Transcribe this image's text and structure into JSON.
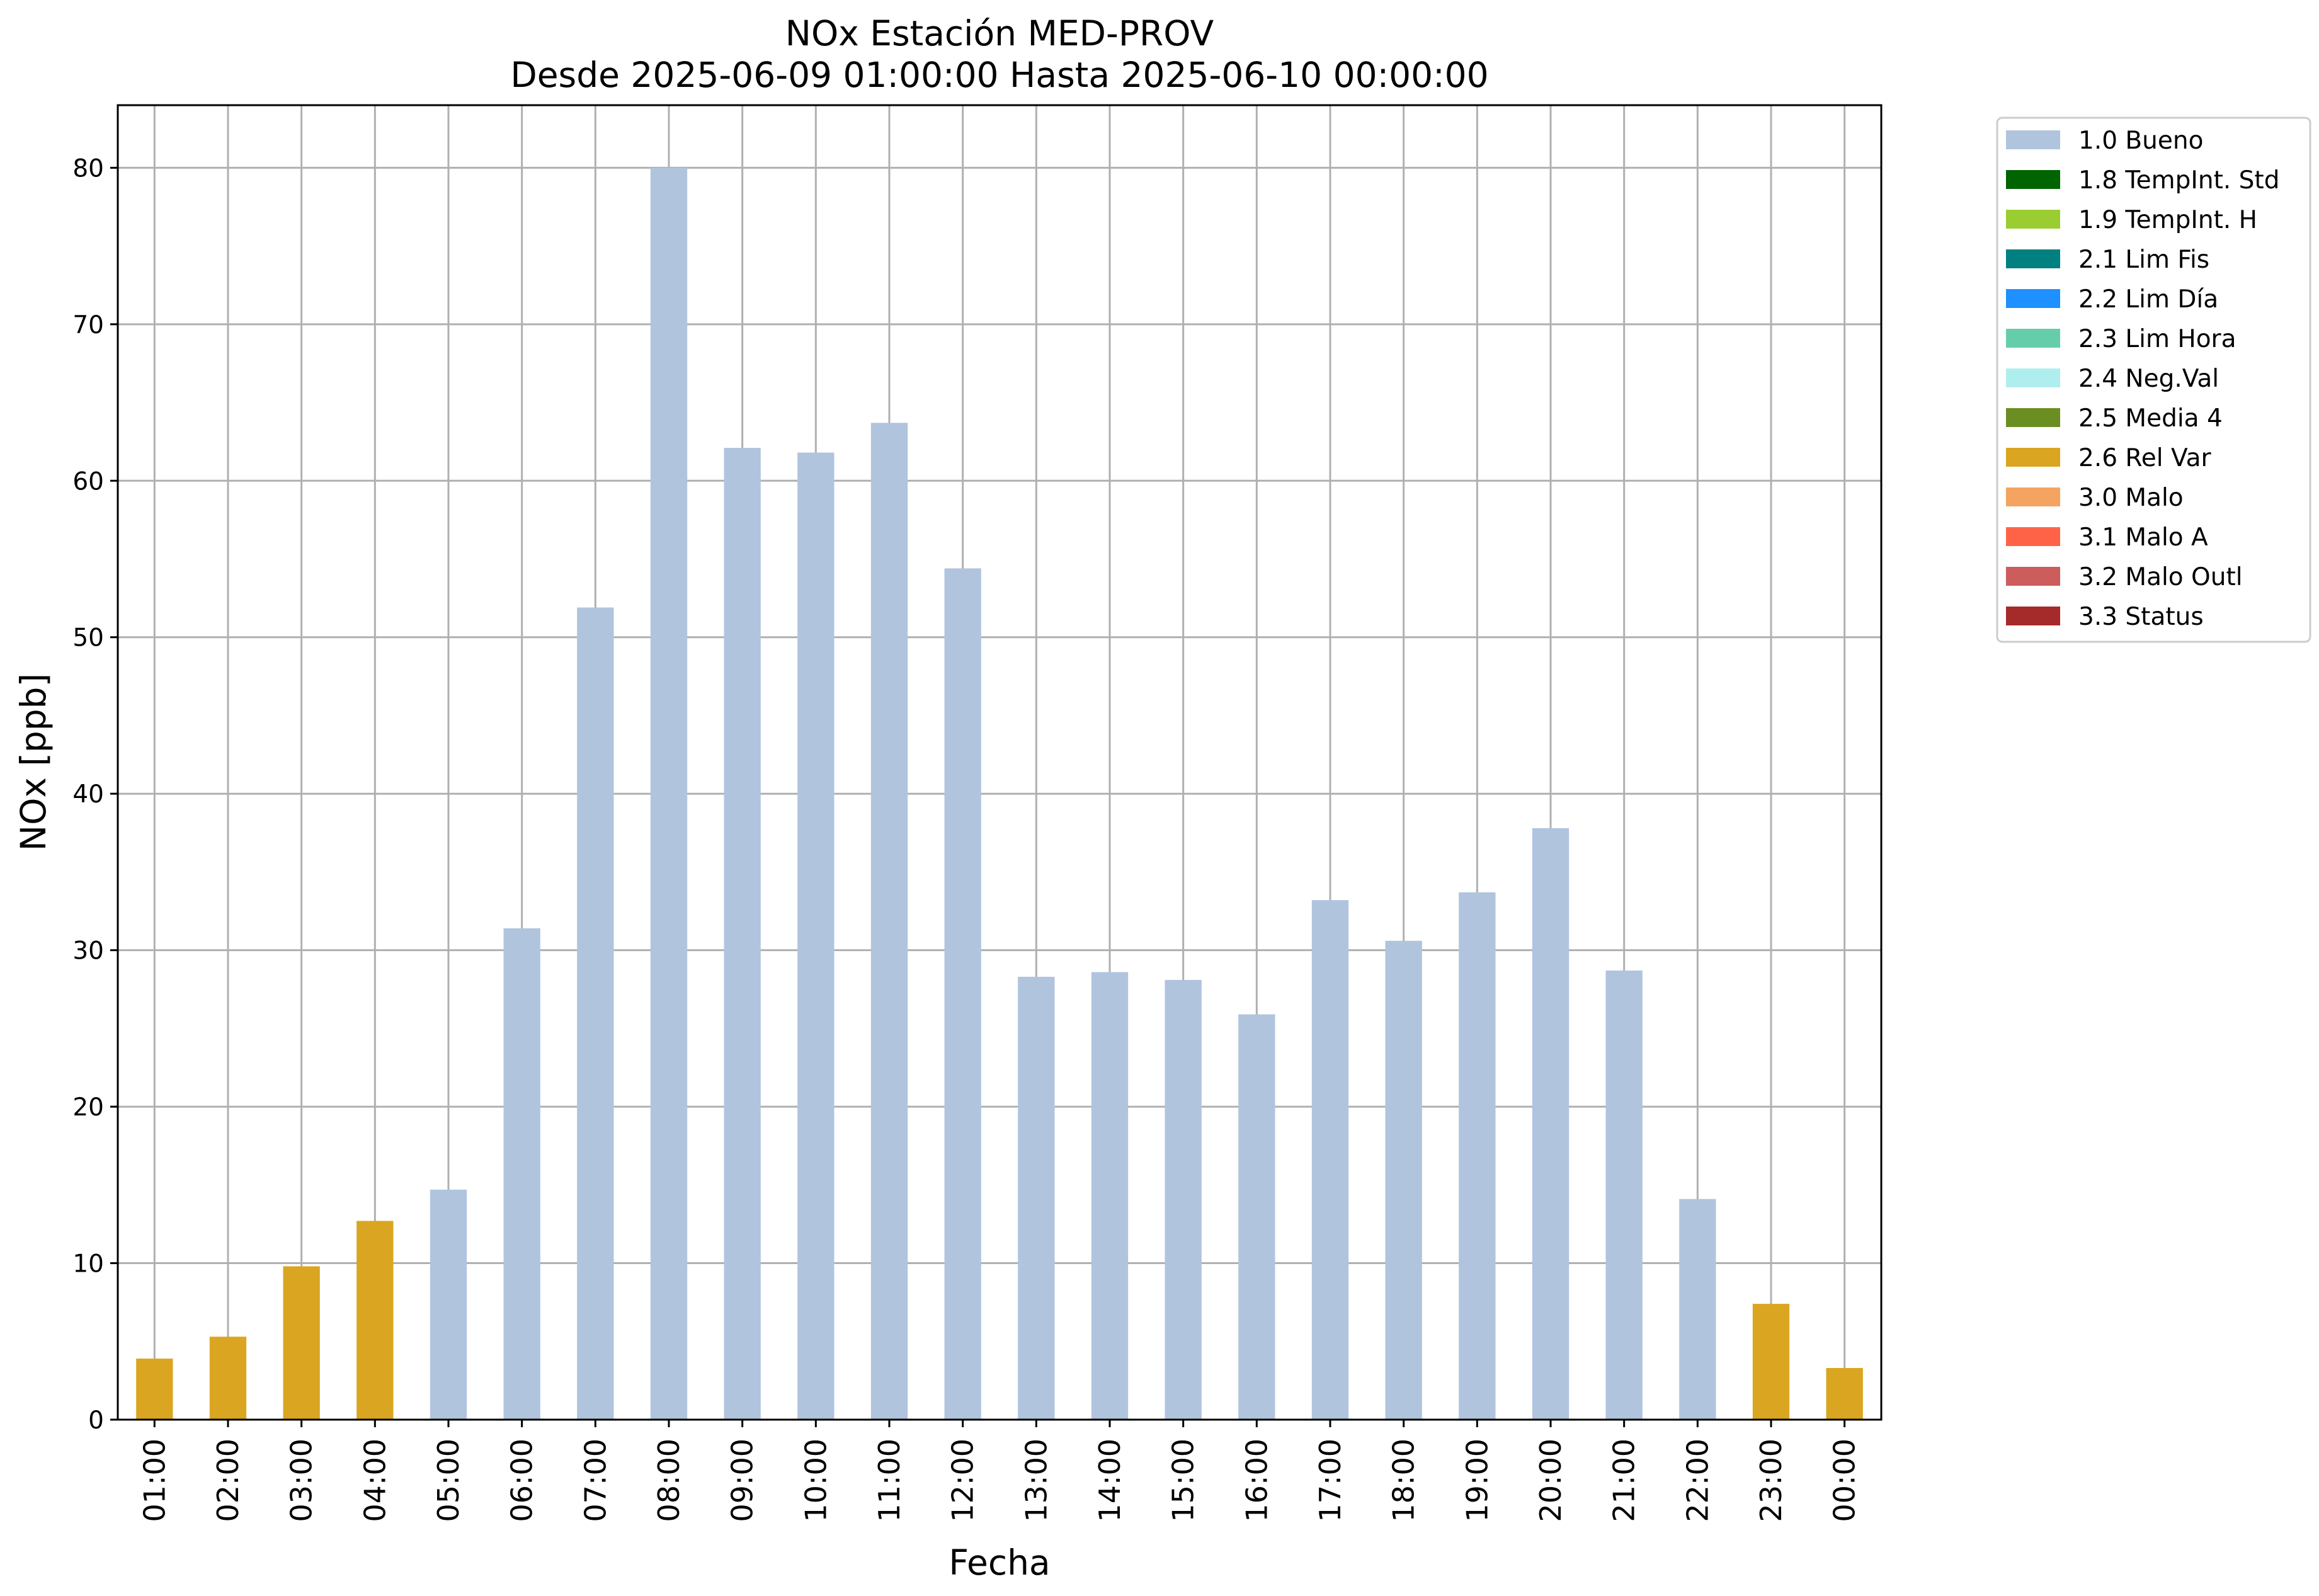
{
  "chart_data": {
    "type": "bar",
    "title": "NOx Estación MED-PROV",
    "subtitle": "Desde 2025-06-09 01:00:00 Hasta 2025-06-10 00:00:00",
    "xlabel": "Fecha",
    "ylabel": "NOx [ppb]",
    "ylim": [
      0,
      84
    ],
    "yticks": [
      0,
      10,
      20,
      30,
      40,
      50,
      60,
      70,
      80
    ],
    "grid": true,
    "legend_position": "outside-top-right",
    "categories": [
      "01:00",
      "02:00",
      "03:00",
      "04:00",
      "05:00",
      "06:00",
      "07:00",
      "08:00",
      "09:00",
      "10:00",
      "11:00",
      "12:00",
      "13:00",
      "14:00",
      "15:00",
      "16:00",
      "17:00",
      "18:00",
      "19:00",
      "20:00",
      "21:00",
      "22:00",
      "23:00",
      "00:00"
    ],
    "values": [
      3.9,
      5.3,
      9.8,
      12.7,
      14.7,
      31.4,
      51.9,
      80.0,
      62.1,
      61.8,
      63.7,
      54.4,
      28.3,
      28.6,
      28.1,
      25.9,
      33.2,
      30.6,
      33.7,
      37.8,
      28.7,
      14.1,
      7.4,
      3.3
    ],
    "flags": [
      "2.6 Rel Var",
      "2.6 Rel Var",
      "2.6 Rel Var",
      "2.6 Rel Var",
      "1.0 Bueno",
      "1.0 Bueno",
      "1.0 Bueno",
      "1.0 Bueno",
      "1.0 Bueno",
      "1.0 Bueno",
      "1.0 Bueno",
      "1.0 Bueno",
      "1.0 Bueno",
      "1.0 Bueno",
      "1.0 Bueno",
      "1.0 Bueno",
      "1.0 Bueno",
      "1.0 Bueno",
      "1.0 Bueno",
      "1.0 Bueno",
      "1.0 Bueno",
      "1.0 Bueno",
      "2.6 Rel Var",
      "2.6 Rel Var"
    ],
    "legend": [
      {
        "label": "1.0 Bueno",
        "color": "#b0c4de"
      },
      {
        "label": "1.8 TempInt. Std",
        "color": "#006400"
      },
      {
        "label": "1.9 TempInt. H",
        "color": "#9acd32"
      },
      {
        "label": "2.1 Lim Fis",
        "color": "#008080"
      },
      {
        "label": "2.2 Lim Día",
        "color": "#1e90ff"
      },
      {
        "label": "2.3 Lim Hora",
        "color": "#66cdaa"
      },
      {
        "label": "2.4 Neg.Val",
        "color": "#afeeee"
      },
      {
        "label": "2.5 Media 4",
        "color": "#6b8e23"
      },
      {
        "label": "2.6 Rel Var",
        "color": "#daa520"
      },
      {
        "label": "3.0 Malo",
        "color": "#f4a460"
      },
      {
        "label": "3.1 Malo A",
        "color": "#ff6347"
      },
      {
        "label": "3.2 Malo Outl",
        "color": "#cd5c5c"
      },
      {
        "label": "3.3 Status",
        "color": "#a52a2a"
      }
    ]
  }
}
